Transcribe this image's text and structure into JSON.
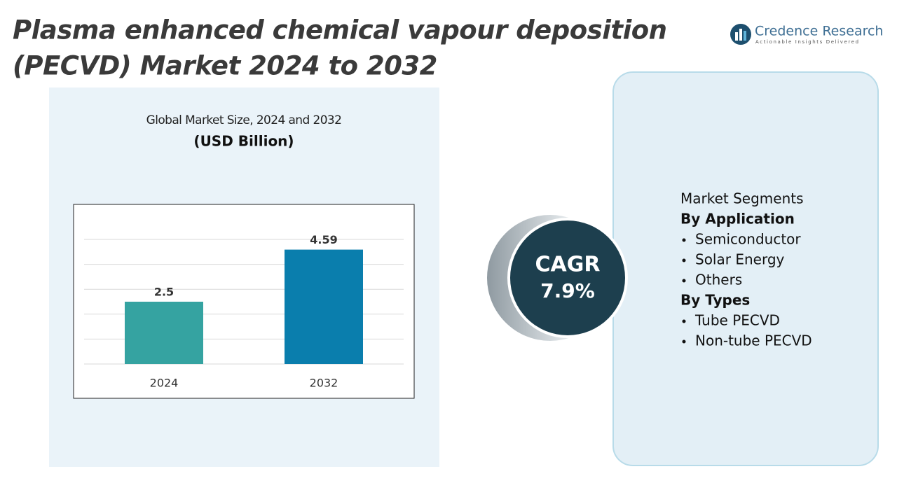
{
  "header": {
    "title_line1": "Plasma enhanced chemical vapour deposition",
    "title_line2": "(PECVD) Market 2024 to 2032"
  },
  "logo": {
    "name": "Credence Research",
    "tagline": "Actionable Insights Delivered"
  },
  "chart_data": {
    "type": "bar",
    "title": "Global Market Size, 2024 and 2032",
    "subtitle": "(USD Billion)",
    "categories": [
      "2024",
      "2032"
    ],
    "values": [
      2.5,
      4.59
    ],
    "colors": [
      "#35a3a1",
      "#0a7ead"
    ],
    "ylim": [
      0,
      5
    ],
    "yticks": [
      0,
      1,
      2,
      3,
      4,
      5
    ],
    "grid": true
  },
  "cagr": {
    "label": "CAGR",
    "value": "7.9%"
  },
  "segments": {
    "title": "Market Segments",
    "groups": [
      {
        "heading": "By Application",
        "items": [
          "Semiconductor",
          "Solar Energy",
          "Others"
        ]
      },
      {
        "heading": "By Types",
        "items": [
          "Tube PECVD",
          "Non-tube PECVD"
        ]
      }
    ]
  }
}
